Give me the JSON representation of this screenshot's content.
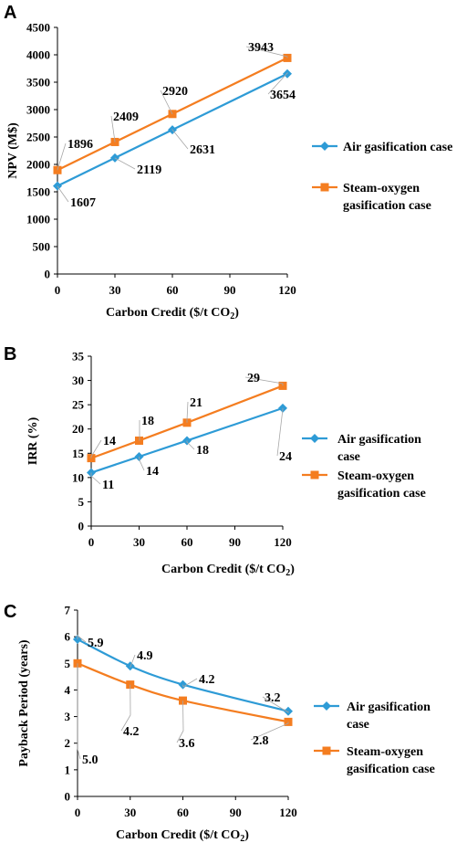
{
  "colors": {
    "air": "#2E9BD6",
    "steam": "#F47D20",
    "axis": "#000000",
    "leader": "#A6A6A6"
  },
  "chart_data": [
    {
      "panel": "A",
      "type": "line",
      "xlabel": "Carbon Credit ($/t CO",
      "xlabel_sub": "2",
      "xlabel_end": ")",
      "ylabel": "NPV (M$)",
      "xlim": [
        0,
        120
      ],
      "ylim": [
        0,
        4500
      ],
      "xticks": [
        0,
        30,
        60,
        90,
        120
      ],
      "yticks": [
        0,
        500,
        1000,
        1500,
        2000,
        2500,
        3000,
        3500,
        4000,
        4500
      ],
      "legend_position": "right",
      "series": [
        {
          "name": "Air gasification case",
          "legend_lines": [
            "Air gasification case"
          ],
          "marker": "diamond",
          "color": "air",
          "x": [
            0,
            30,
            60,
            120
          ],
          "y": [
            1607,
            2119,
            2631,
            3654
          ],
          "smooth": false
        },
        {
          "name": "Steam-oxygen gasification case",
          "legend_lines": [
            "Steam-oxygen",
            "gasification case"
          ],
          "marker": "square",
          "color": "steam",
          "x": [
            0,
            30,
            60,
            120
          ],
          "y": [
            1896,
            2409,
            2920,
            3943
          ],
          "smooth": false
        }
      ],
      "labels": [
        {
          "series": 0,
          "index": 0,
          "text": "1607"
        },
        {
          "series": 0,
          "index": 1,
          "text": "2119"
        },
        {
          "series": 0,
          "index": 2,
          "text": "2631"
        },
        {
          "series": 0,
          "index": 3,
          "text": "3654"
        },
        {
          "series": 1,
          "index": 0,
          "text": "1896"
        },
        {
          "series": 1,
          "index": 1,
          "text": "2409"
        },
        {
          "series": 1,
          "index": 2,
          "text": "2920"
        },
        {
          "series": 1,
          "index": 3,
          "text": "3943"
        }
      ]
    },
    {
      "panel": "B",
      "type": "line",
      "xlabel": "Carbon Credit ($/t CO",
      "xlabel_sub": "2",
      "xlabel_end": ")",
      "ylabel": "IRR (%)",
      "xlim": [
        0,
        120
      ],
      "ylim": [
        0,
        35
      ],
      "xticks": [
        0,
        30,
        60,
        90,
        120
      ],
      "yticks": [
        0,
        5,
        10,
        15,
        20,
        25,
        30,
        35
      ],
      "legend_position": "right",
      "series": [
        {
          "name": "Air gasification case",
          "legend_lines": [
            "Air gasification",
            "case"
          ],
          "marker": "diamond",
          "color": "air",
          "x": [
            0,
            30,
            60,
            120
          ],
          "y": [
            11,
            14.3,
            17.6,
            24.3
          ],
          "smooth": false
        },
        {
          "name": "Steam-oxygen gasification case",
          "legend_lines": [
            "Steam-oxygen",
            "gasification case"
          ],
          "marker": "square",
          "color": "steam",
          "x": [
            0,
            30,
            60,
            120
          ],
          "y": [
            14,
            17.6,
            21.3,
            28.9
          ],
          "smooth": false
        }
      ],
      "labels": [
        {
          "series": 0,
          "index": 0,
          "text": "11"
        },
        {
          "series": 0,
          "index": 1,
          "text": "14"
        },
        {
          "series": 0,
          "index": 2,
          "text": "18"
        },
        {
          "series": 0,
          "index": 3,
          "text": "24"
        },
        {
          "series": 1,
          "index": 0,
          "text": "14"
        },
        {
          "series": 1,
          "index": 1,
          "text": "18"
        },
        {
          "series": 1,
          "index": 2,
          "text": "21"
        },
        {
          "series": 1,
          "index": 3,
          "text": "29"
        }
      ]
    },
    {
      "panel": "C",
      "type": "line",
      "xlabel": "Carbon Credit ($/t CO",
      "xlabel_sub": "2",
      "xlabel_end": ")",
      "ylabel": "Payback Period (years)",
      "xlim": [
        0,
        120
      ],
      "ylim": [
        0,
        7
      ],
      "xticks": [
        0,
        30,
        60,
        90,
        120
      ],
      "yticks": [
        0,
        1,
        2,
        3,
        4,
        5,
        6,
        7
      ],
      "legend_position": "right",
      "series": [
        {
          "name": "Air gasification case",
          "legend_lines": [
            "Air gasification",
            "case"
          ],
          "marker": "diamond",
          "color": "air",
          "x": [
            0,
            30,
            60,
            120
          ],
          "y": [
            5.9,
            4.9,
            4.2,
            3.2
          ],
          "smooth": true
        },
        {
          "name": "Steam-oxygen gasification case",
          "legend_lines": [
            "Steam-oxygen",
            "gasification case"
          ],
          "marker": "square",
          "color": "steam",
          "x": [
            0,
            30,
            60,
            120
          ],
          "y": [
            5.0,
            4.2,
            3.6,
            2.8
          ],
          "smooth": true
        }
      ],
      "labels": [
        {
          "series": 0,
          "index": 0,
          "text": "5.9"
        },
        {
          "series": 0,
          "index": 1,
          "text": "4.9"
        },
        {
          "series": 0,
          "index": 2,
          "text": "4.2"
        },
        {
          "series": 0,
          "index": 3,
          "text": "3.2"
        },
        {
          "series": 1,
          "index": 0,
          "text": "5.0"
        },
        {
          "series": 1,
          "index": 1,
          "text": "4.2"
        },
        {
          "series": 1,
          "index": 2,
          "text": "3.6"
        },
        {
          "series": 1,
          "index": 3,
          "text": "2.8"
        }
      ]
    }
  ]
}
